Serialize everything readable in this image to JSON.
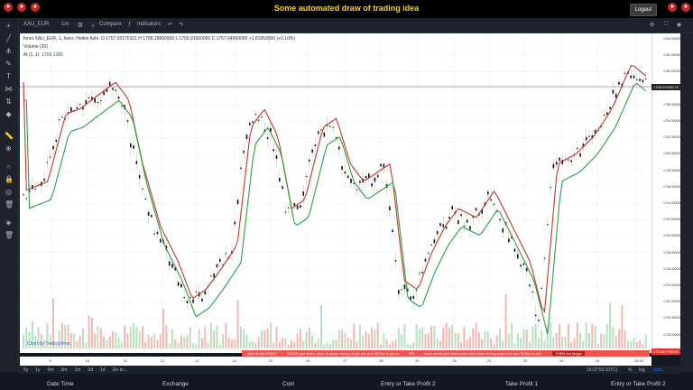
{
  "header": {
    "title": "Some automated draw of trading idea",
    "logout_label": "Logout"
  },
  "toolbar": {
    "symbol": "XAU_EUR",
    "interval": "1m",
    "compare": "Compare",
    "indicators": "Indicators"
  },
  "legend": {
    "line1": "forex:XAU_EUR, 1, forex, Heikin Ashi",
    "ohlc": "O 1757.00175321  H 1758.28800000  L 1756.91600000  C 1757.64000000  +1.81550000 (+0.10%)",
    "volume": "Volume (20)",
    "al": "Al (1, 1)",
    "al_value": "1756.1385"
  },
  "price_axis": {
    "ticks": [
      "1764.000000",
      "1762.000000",
      "1760.000000",
      "1758.000000",
      "1756.000000",
      "1754.000000",
      "1752.000000",
      "1750.000000",
      "1748.000000",
      "1746.000000",
      "1744.000000",
      "1742.000000",
      "1740.000000",
      "1738.000000",
      "1736.000000",
      "1734.000000",
      "1732.000000",
      "1730.000000",
      "1728.000000",
      "1726.000000"
    ],
    "current": "1758.02930275",
    "red_tag": "1724.81790000"
  },
  "time_axis": {
    "labels": [
      "9",
      "10",
      "11",
      "12",
      "13",
      "14",
      "15",
      "16",
      "17",
      "18",
      "19",
      "20",
      "21",
      "22",
      "23",
      "24",
      "15:00"
    ]
  },
  "notes": {
    "text1": "Wait till flip ENDS !",
    "text2": "DRAW just when: price is above strong angle line and 42 line is green",
    "text3": "OR",
    "text4": "draw shorts just when price still below strong angle line and 42 line is red",
    "text5": "THEN the Magic"
  },
  "bottombar": {
    "ranges": [
      "5y",
      "1y",
      "6m",
      "3m",
      "1m",
      "5d",
      "1d",
      "Go to..."
    ],
    "clock": "16:07:53 (UTC)",
    "scale_pct": "%",
    "scale_log": "log",
    "scale_auto": "auto"
  },
  "watermark": "Chart by TradingView",
  "footer": {
    "col1": "Date Time",
    "col2": "Exchange",
    "col3": "Coin",
    "col4": "Entry or Take Profit 2",
    "col5": "Take Profit 1",
    "col6": "Entry or Take Profit 2"
  }
}
